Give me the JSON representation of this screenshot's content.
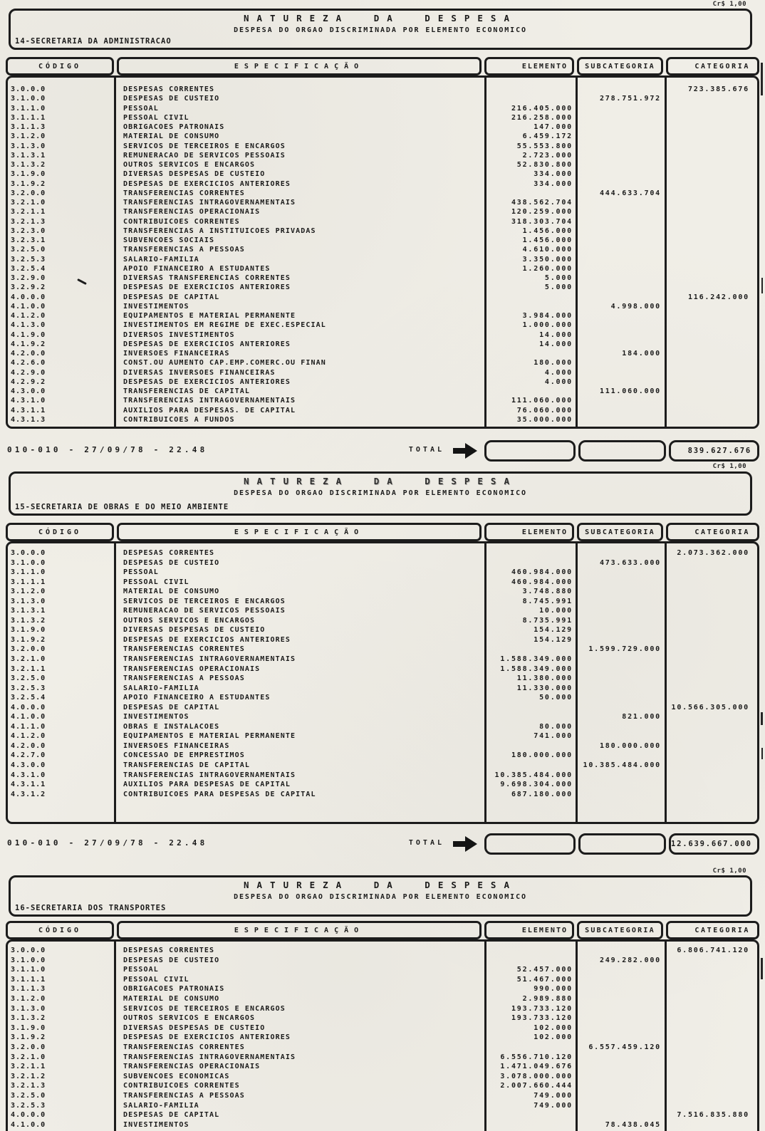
{
  "document": {
    "currency_label": "Cr$ 1,00",
    "title": "NATUREZA DA DESPESA",
    "subtitle": "DESPESA DO  ORGAO DISCRIMINADA POR ELEMENTO ECONOMICO",
    "total_label": "TOTAL",
    "stamp": "010-010 - 27/09/78 - 22.48"
  },
  "columns": {
    "code": "CÓDIGO",
    "spec": "ESPECIFICAÇÃO",
    "elemento": "ELEMENTO",
    "subcategoria": "SUBCATEGORIA",
    "categoria": "CATEGORIA"
  },
  "sections": [
    {
      "org": "14-SECRETARIA DA ADMINISTRACAO",
      "total": "839.627.676",
      "rows": [
        [
          "3.0.0.0",
          "DESPESAS CORRENTES",
          "",
          "",
          "723.385.676"
        ],
        [
          "3.1.0.0",
          "DESPESAS DE CUSTEIO",
          "",
          "278.751.972",
          ""
        ],
        [
          "3.1.1.0",
          "PESSOAL",
          "216.405.000",
          "",
          ""
        ],
        [
          "3.1.1.1",
          "PESSOAL CIVIL",
          "216.258.000",
          "",
          ""
        ],
        [
          "3.1.1.3",
          "OBRIGACOES PATRONAIS",
          "147.000",
          "",
          ""
        ],
        [
          "3.1.2.0",
          "MATERIAL DE CONSUMO",
          "6.459.172",
          "",
          ""
        ],
        [
          "3.1.3.0",
          "SERVICOS DE TERCEIROS E ENCARGOS",
          "55.553.800",
          "",
          ""
        ],
        [
          "3.1.3.1",
          "REMUNERACAO DE SERVICOS PESSOAIS",
          "2.723.000",
          "",
          ""
        ],
        [
          "3.1.3.2",
          "OUTROS SERVICOS E ENCARGOS",
          "52.830.800",
          "",
          ""
        ],
        [
          "3.1.9.0",
          "DIVERSAS DESPESAS DE CUSTEIO",
          "334.000",
          "",
          ""
        ],
        [
          "3.1.9.2",
          "DESPESAS DE EXERCICIOS ANTERIORES",
          "334.000",
          "",
          ""
        ],
        [
          "3.2.0.0",
          "TRANSFERENCIAS CORRENTES",
          "",
          "444.633.704",
          ""
        ],
        [
          "3.2.1.0",
          "TRANSFERENCIAS INTRAGOVERNAMENTAIS",
          "438.562.704",
          "",
          ""
        ],
        [
          "3.2.1.1",
          "TRANSFERENCIAS OPERACIONAIS",
          "120.259.000",
          "",
          ""
        ],
        [
          "3.2.1.3",
          "CONTRIBUICOES CORRENTES",
          "318.303.704",
          "",
          ""
        ],
        [
          "3.2.3.0",
          "TRANSFERENCIAS A INSTITUICOES PRIVADAS",
          "1.456.000",
          "",
          ""
        ],
        [
          "3.2.3.1",
          "SUBVENCOES SOCIAIS",
          "1.456.000",
          "",
          ""
        ],
        [
          "3.2.5.0",
          "TRANSFERENCIAS A PESSOAS",
          "4.610.000",
          "",
          ""
        ],
        [
          "3.2.5.3",
          "SALARIO-FAMILIA",
          "3.350.000",
          "",
          ""
        ],
        [
          "3.2.5.4",
          "APOIO FINANCEIRO A ESTUDANTES",
          "1.260.000",
          "",
          ""
        ],
        [
          "3.2.9.0",
          "DIVERSAS TRANSFERENCIAS CORRENTES",
          "5.000",
          "",
          ""
        ],
        [
          "3.2.9.2",
          "DESPESAS DE EXERCICIOS ANTERIORES",
          "5.000",
          "",
          ""
        ],
        [
          "4.0.0.0",
          "DESPESAS DE CAPITAL",
          "",
          "",
          "116.242.000"
        ],
        [
          "4.1.0.0",
          "INVESTIMENTOS",
          "",
          "4.998.000",
          ""
        ],
        [
          "4.1.2.0",
          "EQUIPAMENTOS E MATERIAL PERMANENTE",
          "3.984.000",
          "",
          ""
        ],
        [
          "4.1.3.0",
          "INVESTIMENTOS EM REGIME DE EXEC.ESPECIAL",
          "1.000.000",
          "",
          ""
        ],
        [
          "4.1.9.0",
          "DIVERSOS INVESTIMENTOS",
          "14.000",
          "",
          ""
        ],
        [
          "4.1.9.2",
          "DESPESAS DE EXERCICIOS ANTERIORES",
          "14.000",
          "",
          ""
        ],
        [
          "4.2.0.0",
          "INVERSOES FINANCEIRAS",
          "",
          "184.000",
          ""
        ],
        [
          "4.2.6.0",
          "CONST.OU AUMENTO CAP.EMP.COMERC.OU FINAN",
          "180.000",
          "",
          ""
        ],
        [
          "4.2.9.0",
          "DIVERSAS INVERSOES FINANCEIRAS",
          "4.000",
          "",
          ""
        ],
        [
          "4.2.9.2",
          "DESPESAS DE EXERCICIOS ANTERIORES",
          "4.000",
          "",
          ""
        ],
        [
          "4.3.0.0",
          "TRANSFERENCIAS DE CAPITAL",
          "",
          "111.060.000",
          ""
        ],
        [
          "4.3.1.0",
          "TRANSFERENCIAS INTRAGOVERNAMENTAIS",
          "111.060.000",
          "",
          ""
        ],
        [
          "4.3.1.1",
          "AUXILIOS PARA DESPESAS. DE CAPITAL",
          "76.060.000",
          "",
          ""
        ],
        [
          "4.3.1.3",
          "CONTRIBUICOES A FUNDOS",
          "35.000.000",
          "",
          ""
        ]
      ]
    },
    {
      "org": "15-SECRETARIA DE OBRAS E DO MEIO AMBIENTE",
      "total": "12.639.667.000",
      "rows": [
        [
          "3.0.0.0",
          "DESPESAS CORRENTES",
          "",
          "",
          "2.073.362.000"
        ],
        [
          "3.1.0.0",
          "DESPESAS DE CUSTEIO",
          "",
          "473.633.000",
          ""
        ],
        [
          "3.1.1.0",
          "PESSOAL",
          "460.984.000",
          "",
          ""
        ],
        [
          "3.1.1.1",
          "PESSOAL CIVIL",
          "460.984.000",
          "",
          ""
        ],
        [
          "3.1.2.0",
          "MATERIAL DE CONSUMO",
          "3.748.880",
          "",
          ""
        ],
        [
          "3.1.3.0",
          "SERVICOS DE TERCEIROS E ENCARGOS",
          "8.745.991",
          "",
          ""
        ],
        [
          "3.1.3.1",
          "REMUNERACAO DE SERVICOS PESSOAIS",
          "10.000",
          "",
          ""
        ],
        [
          "3.1.3.2",
          "OUTROS SERVICOS E ENCARGOS",
          "8.735.991",
          "",
          ""
        ],
        [
          "3.1.9.0",
          "DIVERSAS DESPESAS DE CUSTEIO",
          "154.129",
          "",
          ""
        ],
        [
          "3.1.9.2",
          "DESPESAS DE EXERCICIOS ANTERIORES",
          "154.129",
          "",
          ""
        ],
        [
          "3.2.0.0",
          "TRANSFERENCIAS CORRENTES",
          "",
          "1.599.729.000",
          ""
        ],
        [
          "3.2.1.0",
          "TRANSFERENCIAS INTRAGOVERNAMENTAIS",
          "1.588.349.000",
          "",
          ""
        ],
        [
          "3.2.1.1",
          "TRANSFERENCIAS OPERACIONAIS",
          "1.588.349.000",
          "",
          ""
        ],
        [
          "3.2.5.0",
          "TRANSFERENCIAS A PESSOAS",
          "11.380.000",
          "",
          ""
        ],
        [
          "3.2.5.3",
          "SALARIO-FAMILIA",
          "11.330.000",
          "",
          ""
        ],
        [
          "3.2.5.4",
          "APOIO FINANCEIRO A ESTUDANTES",
          "50.000",
          "",
          ""
        ],
        [
          "4.0.0.0",
          "DESPESAS DE CAPITAL",
          "",
          "",
          "10.566.305.000"
        ],
        [
          "4.1.0.0",
          "INVESTIMENTOS",
          "",
          "821.000",
          ""
        ],
        [
          "4.1.1.0",
          "OBRAS E INSTALACOES",
          "80.000",
          "",
          ""
        ],
        [
          "4.1.2.0",
          "EQUIPAMENTOS E MATERIAL PERMANENTE",
          "741.000",
          "",
          ""
        ],
        [
          "4.2.0.0",
          "INVERSOES FINANCEIRAS",
          "",
          "180.000.000",
          ""
        ],
        [
          "4.2.7.0",
          "CONCESSAO DE EMPRESTIMOS",
          "180.000.000",
          "",
          ""
        ],
        [
          "4.3.0.0",
          "TRANSFERENCIAS DE CAPITAL",
          "",
          "10.385.484.000",
          ""
        ],
        [
          "4.3.1.0",
          "TRANSFERENCIAS INTRAGOVERNAMENTAIS",
          "10.385.484.000",
          "",
          ""
        ],
        [
          "4.3.1.1",
          "AUXILIOS PARA DESPESAS DE CAPITAL",
          "9.698.304.000",
          "",
          ""
        ],
        [
          "4.3.1.2",
          "CONTRIBUICOES PARA DESPESAS DE CAPITAL",
          "687.180.000",
          "",
          ""
        ]
      ]
    },
    {
      "org": "16-SECRETARIA DOS TRANSPORTES",
      "rows": [
        [
          "3.0.0.0",
          "DESPESAS CORRENTES",
          "",
          "",
          "6.806.741.120"
        ],
        [
          "3.1.0.0",
          "DESPESAS DE CUSTEIO",
          "",
          "249.282.000",
          ""
        ],
        [
          "3.1.1.0",
          "PESSOAL",
          "52.457.000",
          "",
          ""
        ],
        [
          "3.1.1.1",
          "PESSOAL CIVIL",
          "51.467.000",
          "",
          ""
        ],
        [
          "3.1.1.3",
          "OBRIGACOES PATRONAIS",
          "990.000",
          "",
          ""
        ],
        [
          "3.1.2.0",
          "MATERIAL DE CONSUMO",
          "2.989.880",
          "",
          ""
        ],
        [
          "3.1.3.0",
          "SERVICOS DE TERCEIROS E ENCARGOS",
          "193.733.120",
          "",
          ""
        ],
        [
          "3.1.3.2",
          "OUTROS SERVICOS E ENCARGOS",
          "193.733.120",
          "",
          ""
        ],
        [
          "3.1.9.0",
          "DIVERSAS DESPESAS DE CUSTEIO",
          "102.000",
          "",
          ""
        ],
        [
          "3.1.9.2",
          "DESPESAS DE EXERCICIOS ANTERIORES",
          "102.000",
          "",
          ""
        ],
        [
          "3.2.0.0",
          "TRANSFERENCIAS CORRENTES",
          "",
          "6.557.459.120",
          ""
        ],
        [
          "3.2.1.0",
          "TRANSFERENCIAS INTRAGOVERNAMENTAIS",
          "6.556.710.120",
          "",
          ""
        ],
        [
          "3.2.1.1",
          "TRANSFERENCIAS OPERACIONAIS",
          "1.471.049.676",
          "",
          ""
        ],
        [
          "3.2.1.2",
          "SUBVENCOES ECONOMICAS",
          "3.078.000.000",
          "",
          ""
        ],
        [
          "3.2.1.3",
          "CONTRIBUICOES CORRENTES",
          "2.007.660.444",
          "",
          ""
        ],
        [
          "3.2.5.0",
          "TRANSFERENCIAS A PESSOAS",
          "749.000",
          "",
          ""
        ],
        [
          "3.2.5.3",
          "SALARIO-FAMILIA",
          "749.000",
          "",
          ""
        ],
        [
          "4.0.0.0",
          "DESPESAS DE CAPITAL",
          "",
          "",
          "7.516.835.880"
        ],
        [
          "4.1.0.0",
          "INVESTIMENTOS",
          "",
          "78.438.045",
          ""
        ]
      ]
    }
  ]
}
